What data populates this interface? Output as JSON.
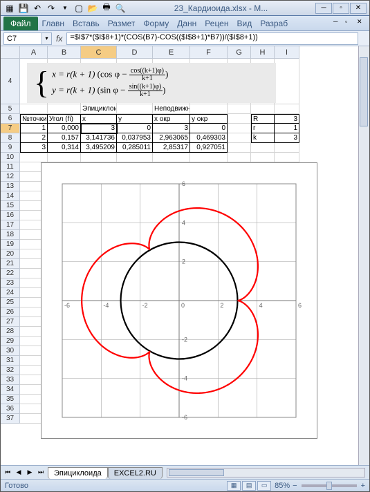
{
  "window": {
    "title": "23_Кардиоида.xlsx - M...",
    "qat_icons": [
      "excel",
      "save",
      "undo",
      "redo",
      "dropdown",
      "new",
      "open",
      "print",
      "preview"
    ]
  },
  "ribbon": {
    "file": "Файл",
    "tabs": [
      "Главн",
      "Вставь",
      "Размет",
      "Форму",
      "Данн",
      "Рецен",
      "Вид",
      "Разраб"
    ]
  },
  "formula": {
    "cell_ref": "C7",
    "fx": "fx",
    "value": "=$I$7*($I$8+1)*(COS(B7)-COS(($I$8+1)*B7))/($I$8+1))"
  },
  "columns": {
    "labels": [
      "A",
      "B",
      "C",
      "D",
      "E",
      "F",
      "G",
      "H",
      "I"
    ],
    "widths": [
      40,
      48,
      52,
      52,
      54,
      54,
      34,
      34,
      36
    ]
  },
  "rows": {
    "visible": [
      4,
      5,
      6,
      7,
      8,
      9,
      10,
      11,
      12,
      13,
      14,
      15,
      16,
      17,
      18,
      19,
      20,
      21,
      22,
      23,
      24,
      25,
      26,
      27,
      28,
      29,
      30,
      31,
      32,
      33,
      34,
      35,
      36,
      37
    ]
  },
  "equation": {
    "line1_pre": "x = r(k + 1)",
    "line1_paren_a": "cos φ −",
    "line1_frac_num": "cos((k+1)φ)",
    "line1_frac_den": "k+1",
    "line2_pre": "y = r(k + 1)",
    "line2_paren_a": "sin φ −",
    "line2_frac_num": "sin((k+1)φ)",
    "line2_frac_den": "k+1"
  },
  "table": {
    "h5_c": "Эпициклоида",
    "h5_e": "Неподвижная окружность",
    "h6": {
      "a": "№точки",
      "b": "Угол (fi)",
      "c": "x",
      "d": "y",
      "e": "x окр",
      "f": "y окр",
      "h": "R",
      "i": "3"
    },
    "r7": {
      "a": "1",
      "b": "0,000",
      "c": "3",
      "d": "0",
      "e": "3",
      "f": "0",
      "h": "r",
      "i": "1"
    },
    "r8": {
      "a": "2",
      "b": "0,157",
      "c": "3,141736",
      "d": "0,037953",
      "e": "2,963065",
      "f": "0,469303",
      "h": "k",
      "i": "3"
    },
    "r9": {
      "a": "3",
      "b": "0,314",
      "c": "3,495209",
      "d": "0,285011",
      "e": "2,85317",
      "f": "0,927051"
    }
  },
  "chart": {
    "type": "scatter-line",
    "xlim": [
      -6,
      6
    ],
    "ylim": [
      -6,
      6
    ],
    "tick_step": 2,
    "grid_color": "#b0b0b0",
    "axis_color": "#777777",
    "background": "#ffffff",
    "tick_labels_x": [
      "-6",
      "-4",
      "-2",
      "0",
      "2",
      "4",
      "6"
    ],
    "tick_labels_y": [
      "-6",
      "-4",
      "-2",
      "0",
      "2",
      "4",
      "6"
    ],
    "series": [
      {
        "name": "circle",
        "color": "#000000",
        "width": 2.2,
        "shape": "circle",
        "cx": 0,
        "cy": 0,
        "r": 3
      },
      {
        "name": "epicycloid",
        "color": "#ff0000",
        "width": 2.2,
        "R": 3,
        "r": 1,
        "k": 3
      }
    ],
    "label_fontsize": 9,
    "label_color": "#666666"
  },
  "tabs": {
    "active": "Эпициклоида",
    "other": "EXCEL2.RU"
  },
  "status": {
    "ready": "Готово",
    "zoom": "85%"
  }
}
